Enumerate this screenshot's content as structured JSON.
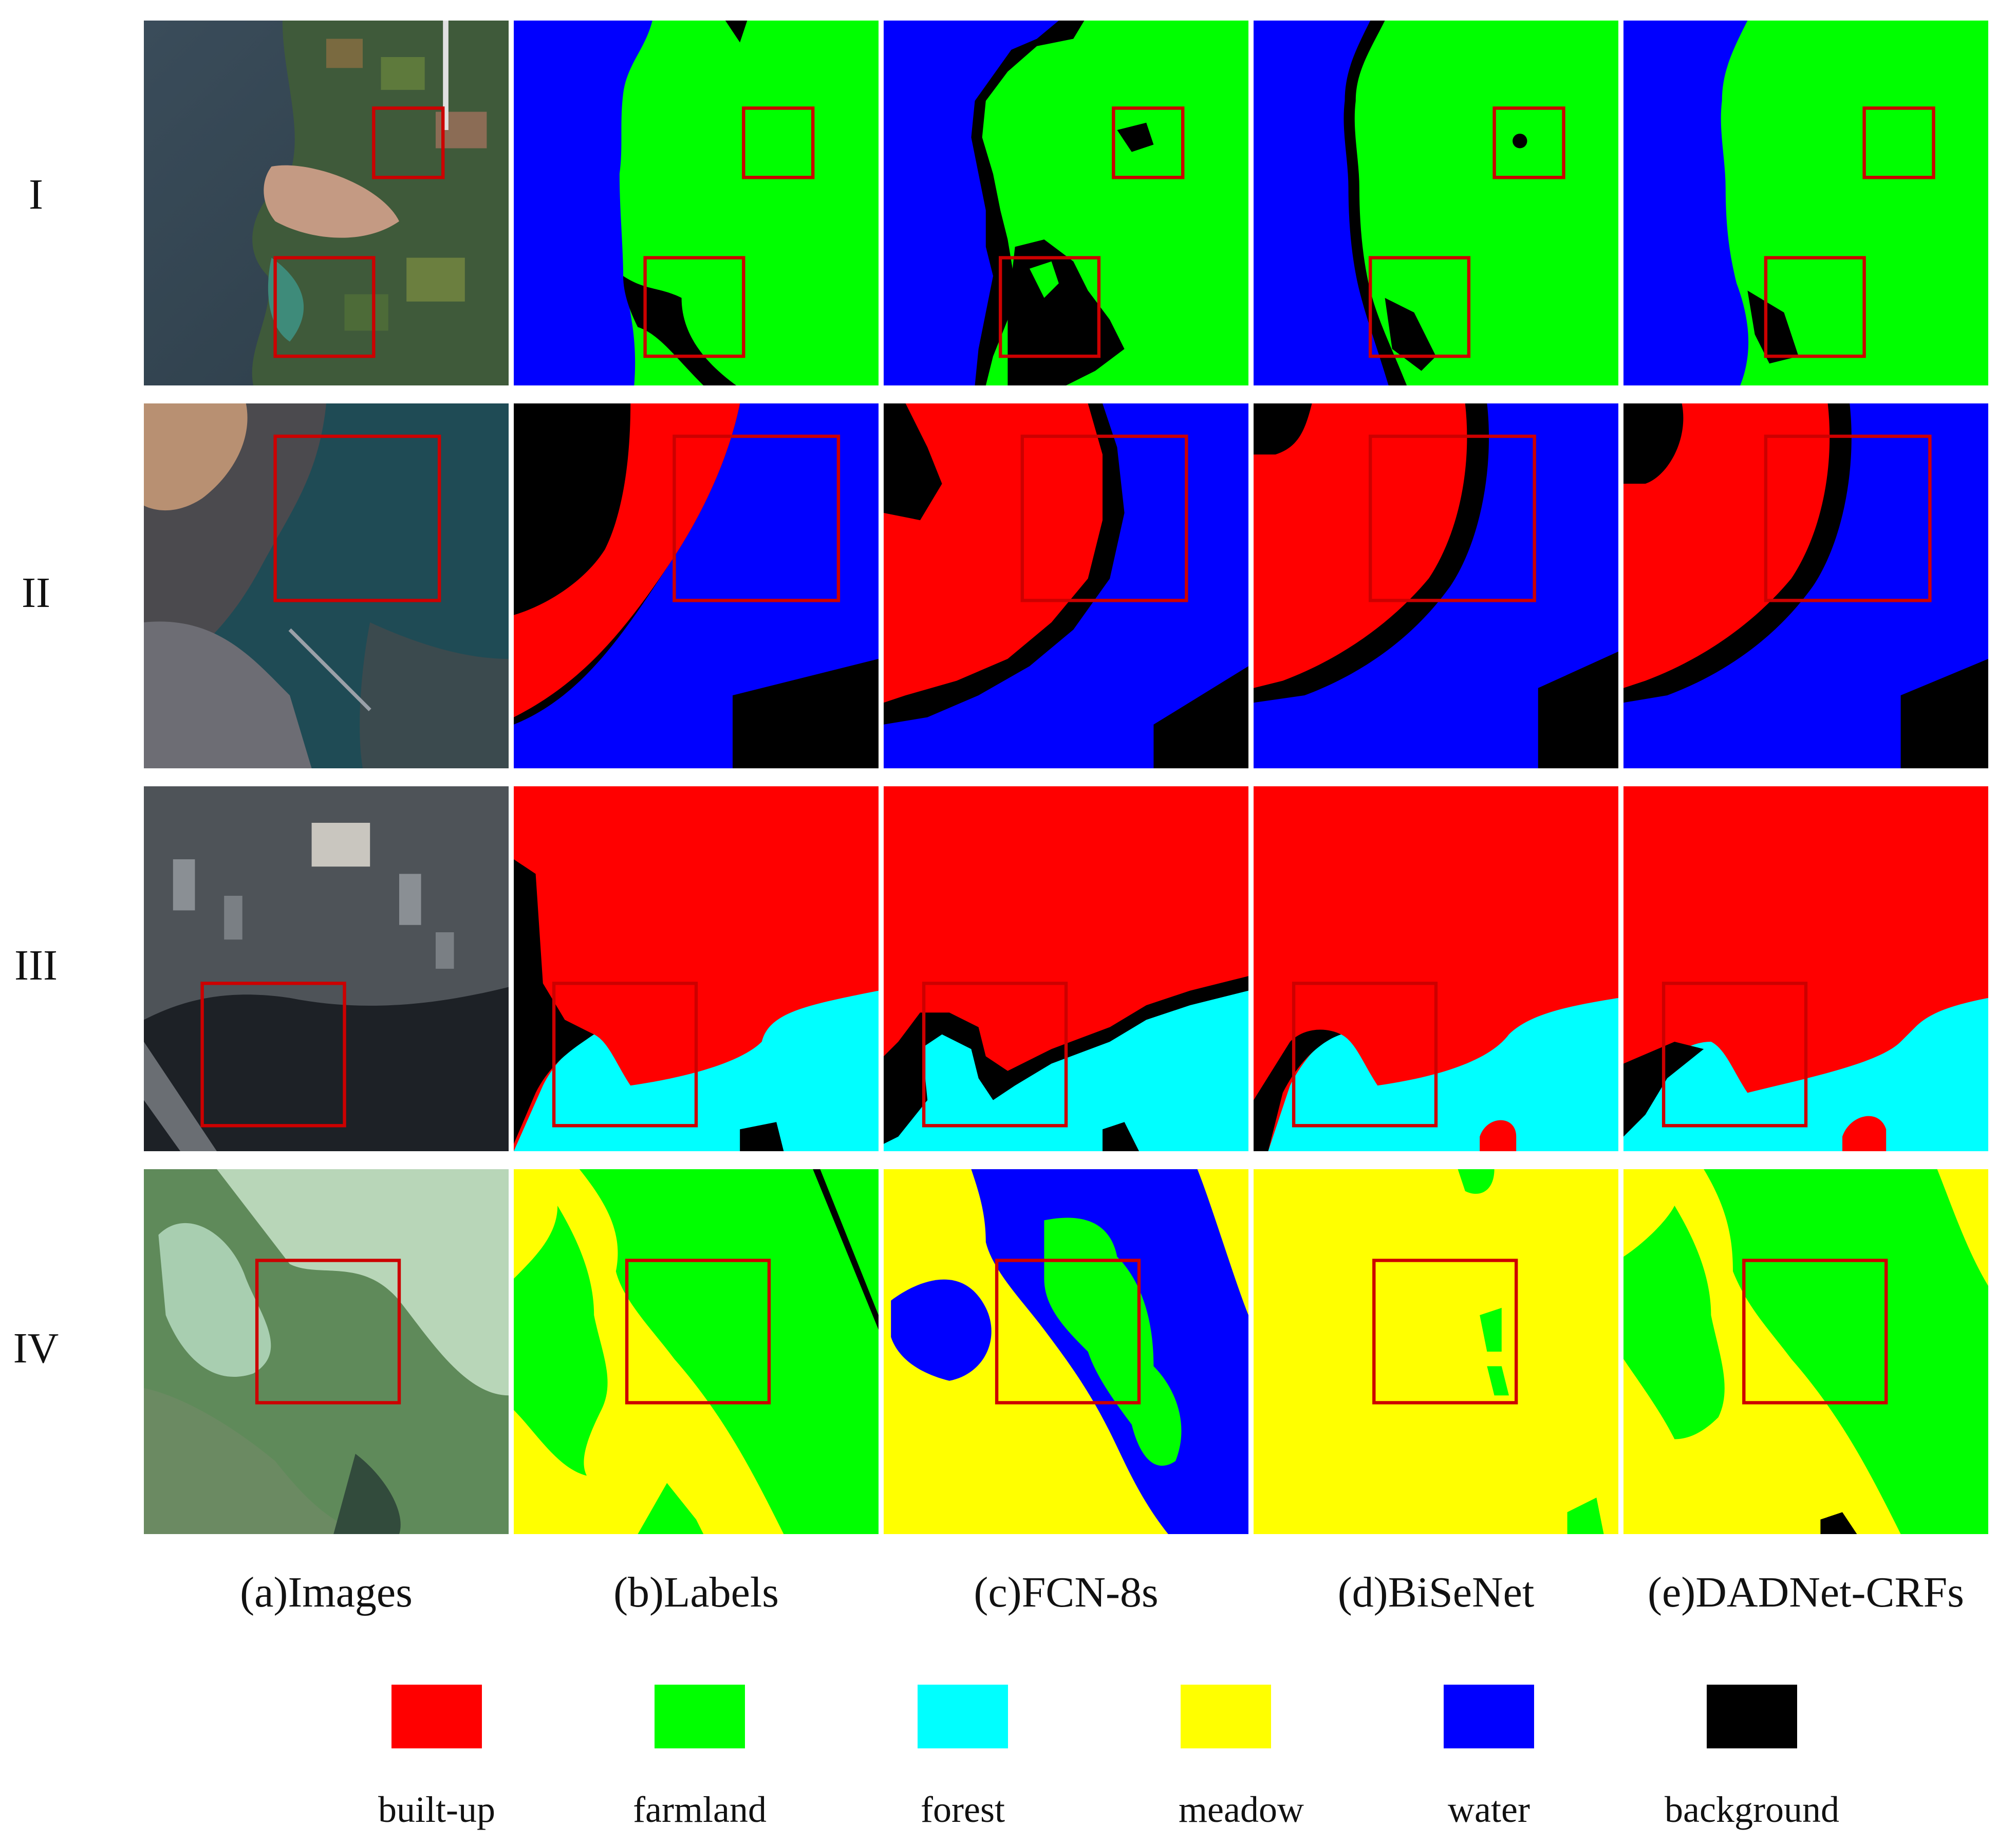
{
  "row_labels": [
    "I",
    "II",
    "III",
    "IV"
  ],
  "column_labels": [
    "(a)Images",
    "(b)Labels",
    "(c)FCN-8s",
    "(d)BiSeNet",
    "(e)DADNet-CRFs"
  ],
  "legend": [
    {
      "label": "built-up",
      "color": "#ff0000"
    },
    {
      "label": "farmland",
      "color": "#00ff00"
    },
    {
      "label": "forest",
      "color": "#00ffff"
    },
    {
      "label": "meadow",
      "color": "#ffff00"
    },
    {
      "label": "water",
      "color": "#0000ff"
    },
    {
      "label": "background",
      "color": "#000000"
    }
  ],
  "highlight_box_color": "#cc0000"
}
